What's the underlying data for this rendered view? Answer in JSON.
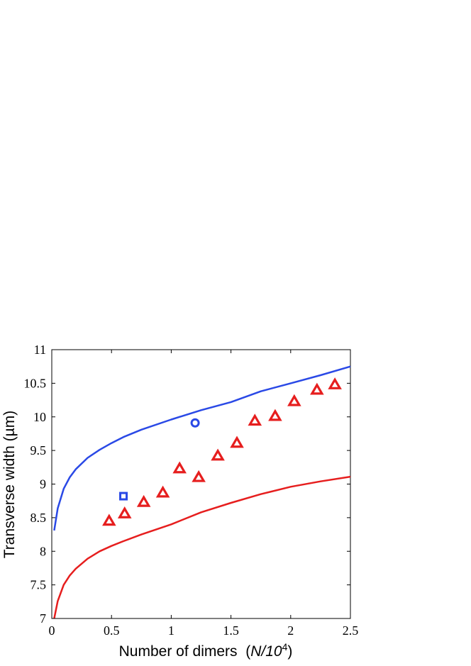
{
  "chart_data": {
    "type": "scatter",
    "xlabel": "Number of dimers",
    "xlabel_unit": "N/10",
    "xlabel_unit_exp": "4",
    "ylabel": "Transverse width (µm)",
    "xlim": [
      0,
      2.5
    ],
    "ylim": [
      7,
      11
    ],
    "xticks": [
      {
        "value": 0,
        "label": "0"
      },
      {
        "value": 0.5,
        "label": "0.5"
      },
      {
        "value": 1,
        "label": "1"
      },
      {
        "value": 1.5,
        "label": "1.5"
      },
      {
        "value": 2,
        "label": "2"
      },
      {
        "value": 2.5,
        "label": "2.5"
      }
    ],
    "yticks": [
      {
        "value": 7,
        "label": "7"
      },
      {
        "value": 7.5,
        "label": "7.5"
      },
      {
        "value": 8,
        "label": "8"
      },
      {
        "value": 8.5,
        "label": "8.5"
      },
      {
        "value": 9,
        "label": "9"
      },
      {
        "value": 9.5,
        "label": "9.5"
      },
      {
        "value": 10,
        "label": "10"
      },
      {
        "value": 10.5,
        "label": "10.5"
      },
      {
        "value": 11,
        "label": "11"
      }
    ],
    "grid": false,
    "series": [
      {
        "kind": "line",
        "color": "#2a49e6",
        "x": [
          0.02,
          0.05,
          0.1,
          0.15,
          0.2,
          0.3,
          0.4,
          0.5,
          0.6,
          0.75,
          1.0,
          1.25,
          1.5,
          1.75,
          2.0,
          2.25,
          2.5
        ],
        "y": [
          8.31,
          8.64,
          8.93,
          9.1,
          9.22,
          9.39,
          9.51,
          9.61,
          9.7,
          9.81,
          9.96,
          10.1,
          10.22,
          10.38,
          10.5,
          10.62,
          10.75
        ]
      },
      {
        "kind": "line",
        "color": "#e61e1e",
        "x": [
          0.02,
          0.05,
          0.1,
          0.15,
          0.2,
          0.3,
          0.4,
          0.5,
          0.6,
          0.75,
          1.0,
          1.25,
          1.5,
          1.75,
          2.0,
          2.25,
          2.5
        ],
        "y": [
          7.0,
          7.26,
          7.5,
          7.64,
          7.74,
          7.89,
          8.0,
          8.08,
          8.15,
          8.25,
          8.4,
          8.58,
          8.72,
          8.85,
          8.96,
          9.04,
          9.11
        ]
      },
      {
        "kind": "scatter",
        "marker": "triangle",
        "color": "#e61e1e",
        "x": [
          0.48,
          0.61,
          0.77,
          0.93,
          1.07,
          1.23,
          1.39,
          1.55,
          1.7,
          1.87,
          2.03,
          2.22,
          2.37
        ],
        "y": [
          8.45,
          8.56,
          8.73,
          8.87,
          9.23,
          9.1,
          9.42,
          9.61,
          9.94,
          10.01,
          10.23,
          10.4,
          10.48
        ]
      },
      {
        "kind": "scatter",
        "marker": "square",
        "color": "#2a49e6",
        "x": [
          0.6
        ],
        "y": [
          8.82
        ]
      },
      {
        "kind": "scatter",
        "marker": "circle",
        "color": "#2a49e6",
        "x": [
          1.2
        ],
        "y": [
          9.91
        ]
      }
    ]
  }
}
